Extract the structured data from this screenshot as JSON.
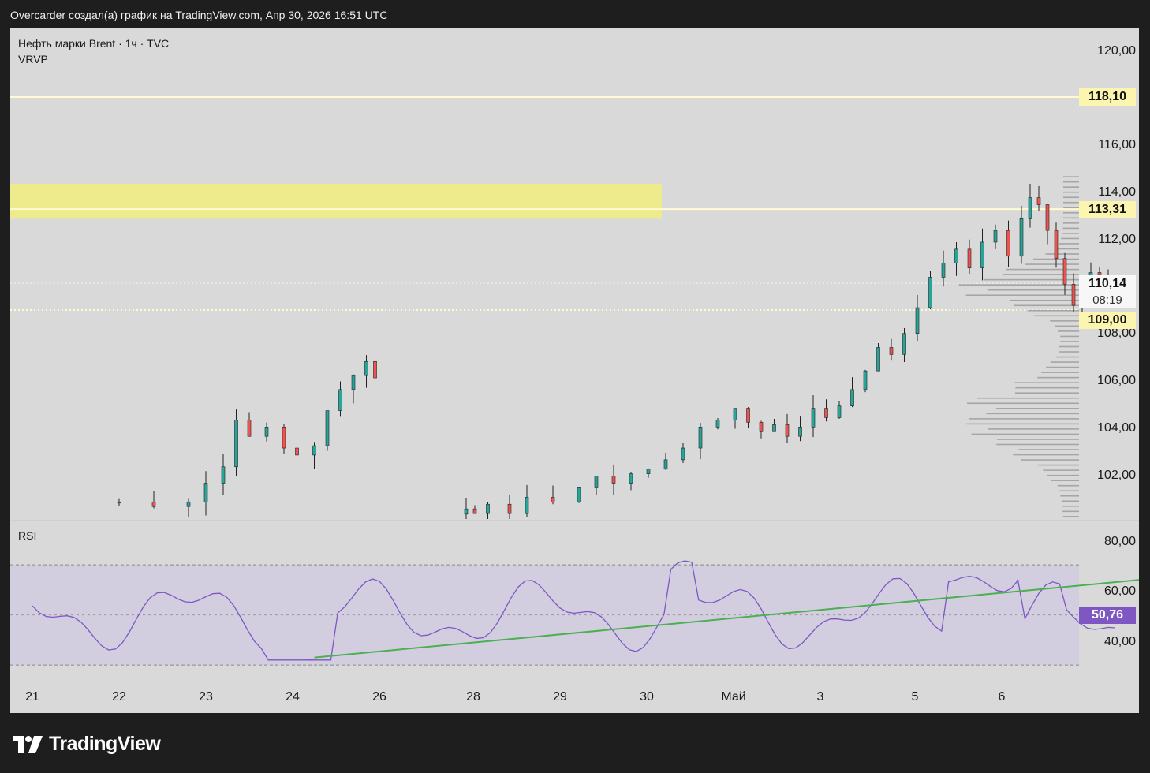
{
  "header": {
    "title": "Overcarder создал(а) график на TradingView.com, Апр 30, 2026 16:51 UTC"
  },
  "legend": {
    "symbol": "Нефть марки Brent · 1ч · TVC",
    "indicator": "VRVP",
    "rsi": "RSI"
  },
  "price_axis": {
    "ticks": [
      "120,00",
      "116,00",
      "114,00",
      "112,00",
      "108,00",
      "106,00",
      "104,00",
      "102,00"
    ]
  },
  "tags": {
    "level_high": "118,10",
    "level_zone": "113,31",
    "last_price": "110,14",
    "countdown": "08:19",
    "level_low": "109,00",
    "rsi_value": "50,76"
  },
  "rsi_axis": {
    "ticks": [
      "80,00",
      "60,00",
      "40,00"
    ]
  },
  "time_axis": {
    "labels": [
      "21",
      "22",
      "23",
      "24",
      "26",
      "28",
      "29",
      "30",
      "Май",
      "3",
      "5",
      "6"
    ]
  },
  "brand": {
    "name": "TradingView"
  },
  "colors": {
    "up": "#26a69a",
    "down": "#ef5350",
    "zone": "#eeeb8c",
    "rsi_line": "#7e57c2",
    "trendline": "#4caf50"
  },
  "chart_data": {
    "type": "candlestick",
    "symbol": "Нефть марки Brent",
    "interval": "1ч",
    "y_range": [
      100,
      121
    ],
    "horizontal_levels": [
      118.1,
      113.31,
      109.0
    ],
    "zone": [
      112.9,
      114.4
    ],
    "last_price": 110.14,
    "closes": [
      [
        22.0,
        100.8
      ],
      [
        22.4,
        100.6
      ],
      [
        22.8,
        100.8
      ],
      [
        23.0,
        101.6
      ],
      [
        23.2,
        102.3
      ],
      [
        23.35,
        104.3
      ],
      [
        23.5,
        103.6
      ],
      [
        23.7,
        104.0
      ],
      [
        23.9,
        103.1
      ],
      [
        24.05,
        102.8
      ],
      [
        24.25,
        103.2
      ],
      [
        24.4,
        104.7
      ],
      [
        24.55,
        105.6
      ],
      [
        24.7,
        106.2
      ],
      [
        24.85,
        106.8
      ],
      [
        24.95,
        106.1
      ],
      [
        26.0,
        100.5
      ],
      [
        26.1,
        100.3
      ],
      [
        26.25,
        100.7
      ],
      [
        26.5,
        100.3
      ],
      [
        26.7,
        101.0
      ],
      [
        27.0,
        100.8
      ],
      [
        27.3,
        101.4
      ],
      [
        27.5,
        101.9
      ],
      [
        27.7,
        101.6
      ],
      [
        27.9,
        102.0
      ],
      [
        28.1,
        102.2
      ],
      [
        28.3,
        102.6
      ],
      [
        28.5,
        103.1
      ],
      [
        28.7,
        104.0
      ],
      [
        28.9,
        104.3
      ],
      [
        29.1,
        104.8
      ],
      [
        29.25,
        104.2
      ],
      [
        29.4,
        103.8
      ],
      [
        29.55,
        104.1
      ],
      [
        29.7,
        103.6
      ],
      [
        29.85,
        104.0
      ],
      [
        30.0,
        104.8
      ],
      [
        30.15,
        104.4
      ],
      [
        30.3,
        104.9
      ],
      [
        30.45,
        105.6
      ],
      [
        30.6,
        106.4
      ],
      [
        30.75,
        107.4
      ],
      [
        30.9,
        107.1
      ],
      [
        31.05,
        108.0
      ],
      [
        31.2,
        109.1
      ],
      [
        31.35,
        110.4
      ],
      [
        31.5,
        111.0
      ],
      [
        31.65,
        111.6
      ],
      [
        31.8,
        110.8
      ],
      [
        31.95,
        111.9
      ],
      [
        32.1,
        112.4
      ],
      [
        32.25,
        111.3
      ],
      [
        32.4,
        112.9
      ],
      [
        32.5,
        113.8
      ],
      [
        32.6,
        113.5
      ],
      [
        32.7,
        112.4
      ],
      [
        32.8,
        111.2
      ],
      [
        32.9,
        110.1
      ],
      [
        33.0,
        109.2
      ],
      [
        33.1,
        109.5
      ],
      [
        33.2,
        110.6
      ],
      [
        33.3,
        109.8
      ],
      [
        33.4,
        110.14
      ]
    ],
    "rsi": {
      "value": 50.76,
      "range": [
        25,
        88
      ],
      "band": [
        30,
        70
      ],
      "midline": 50
    }
  }
}
